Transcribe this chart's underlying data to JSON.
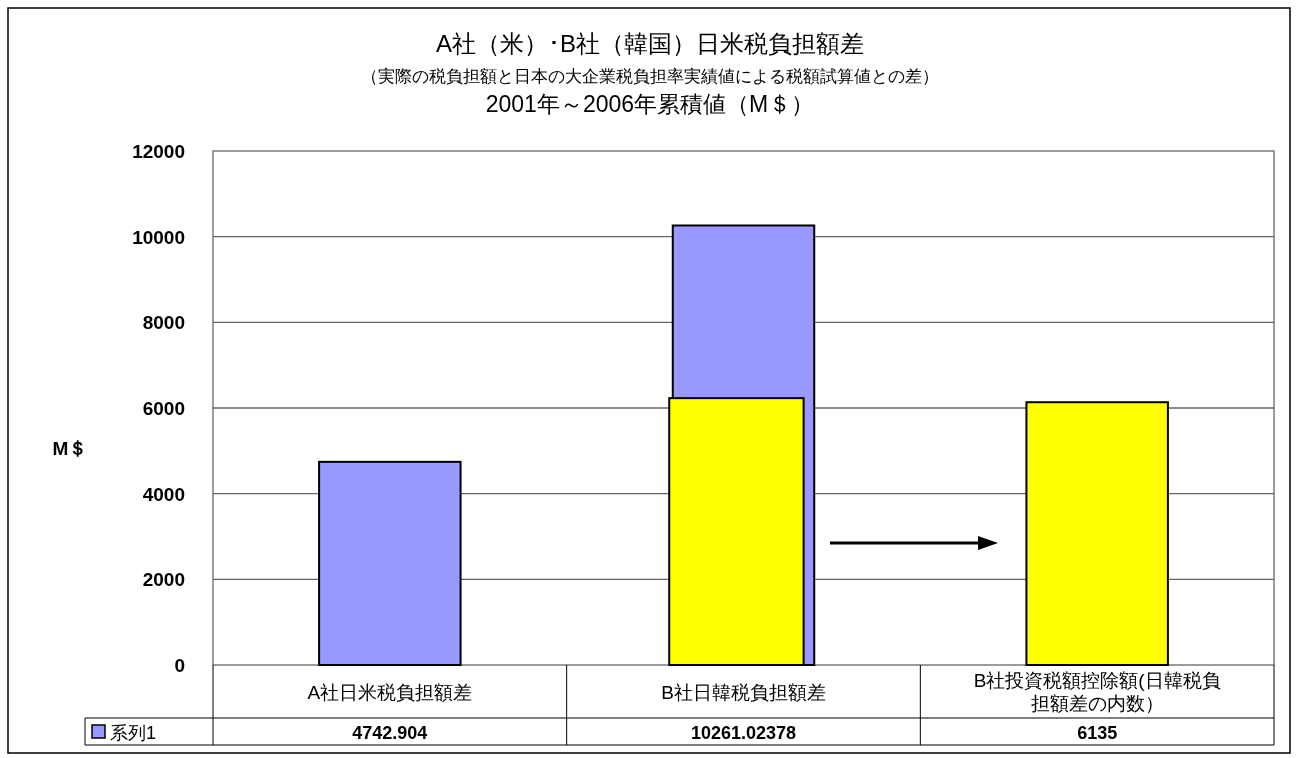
{
  "chart_data": {
    "type": "bar",
    "title": "A社（米）･B社（韓国）日米税負担額差",
    "subtitle": "（実際の税負担額と日本の大企業税負担率実績値による税額試算値との差）",
    "annotations": [
      "2001年～2006年累積値（M＄）"
    ],
    "ylabel": "M＄",
    "categories": [
      "A社日米税負担額差",
      "B社日韓税負担額差",
      "B社投資税額控除額(日韓税負担額差の内数）"
    ],
    "series": [
      {
        "name": "系列1",
        "colors": [
          "#9999ff",
          "#9999ff",
          "#ffff00"
        ],
        "values": [
          4742.904,
          10261.02378,
          6135
        ],
        "value_labels": [
          "4742.904",
          "10261.02378",
          "6135"
        ]
      },
      {
        "color": "#ffff00",
        "values": [
          null,
          6230,
          null
        ]
      }
    ],
    "ylim": [
      0,
      12000
    ],
    "yticks": [
      0,
      2000,
      4000,
      6000,
      8000,
      10000,
      12000
    ],
    "grid": "y",
    "legend": "bottom"
  }
}
